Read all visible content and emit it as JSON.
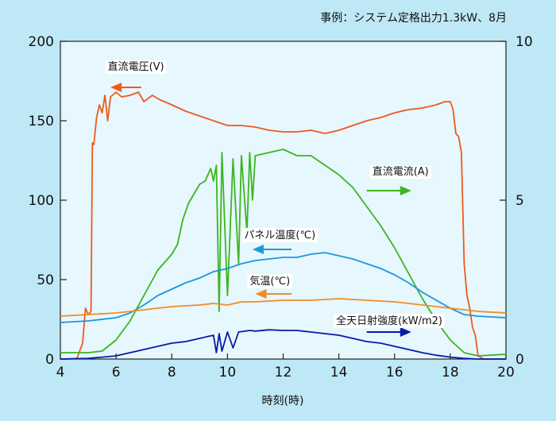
{
  "caption": "事例：システム定格出力1.3kW、8月",
  "chart_data": {
    "type": "line",
    "xlabel": "時刻(時)",
    "xlim": [
      4,
      20
    ],
    "ylim_left": [
      0,
      200
    ],
    "ylim_right": [
      0,
      10
    ],
    "x_ticks": [
      "4",
      "6",
      "8",
      "10",
      "12",
      "14",
      "16",
      "18",
      "20"
    ],
    "y_ticks_left": [
      "0",
      "50",
      "100",
      "150",
      "200"
    ],
    "y_ticks_right": [
      "0",
      "5",
      "10"
    ],
    "grid": false,
    "series": [
      {
        "name": "直流電圧(V)",
        "axis": "left",
        "color": "#ee5a1c",
        "arrow_dir": "left",
        "label_x": 5.7,
        "label_y": 182,
        "arrow_x": [
          6.9,
          5.8
        ],
        "arrow_y": 171,
        "points": [
          [
            4.0,
            0
          ],
          [
            4.3,
            0
          ],
          [
            4.6,
            0.5
          ],
          [
            4.8,
            10
          ],
          [
            4.9,
            32
          ],
          [
            5.0,
            28
          ],
          [
            5.1,
            30
          ],
          [
            5.15,
            136
          ],
          [
            5.2,
            135
          ],
          [
            5.3,
            152
          ],
          [
            5.4,
            160
          ],
          [
            5.5,
            155
          ],
          [
            5.6,
            166
          ],
          [
            5.7,
            150
          ],
          [
            5.8,
            165
          ],
          [
            6.0,
            168
          ],
          [
            6.2,
            165
          ],
          [
            6.5,
            166
          ],
          [
            6.8,
            168
          ],
          [
            7.0,
            162
          ],
          [
            7.3,
            166
          ],
          [
            7.6,
            163
          ],
          [
            8.0,
            160
          ],
          [
            8.5,
            156
          ],
          [
            9.0,
            153
          ],
          [
            9.5,
            150
          ],
          [
            10.0,
            147
          ],
          [
            10.5,
            147
          ],
          [
            11.0,
            146
          ],
          [
            11.5,
            144
          ],
          [
            12.0,
            143
          ],
          [
            12.5,
            143
          ],
          [
            13.0,
            144
          ],
          [
            13.5,
            142
          ],
          [
            14.0,
            144
          ],
          [
            14.5,
            147
          ],
          [
            15.0,
            150
          ],
          [
            15.5,
            152
          ],
          [
            16.0,
            155
          ],
          [
            16.5,
            157
          ],
          [
            17.0,
            158
          ],
          [
            17.5,
            160
          ],
          [
            17.8,
            162
          ],
          [
            18.0,
            162
          ],
          [
            18.1,
            157
          ],
          [
            18.2,
            142
          ],
          [
            18.3,
            140
          ],
          [
            18.4,
            130
          ],
          [
            18.5,
            60
          ],
          [
            18.6,
            40
          ],
          [
            18.7,
            32
          ],
          [
            18.8,
            20
          ],
          [
            18.9,
            15
          ],
          [
            19.0,
            2
          ],
          [
            19.2,
            0
          ],
          [
            20.0,
            0
          ]
        ]
      },
      {
        "name": "直流電流(A)",
        "axis": "right",
        "color": "#3cb521",
        "arrow_dir": "right",
        "label_x": 15.2,
        "label_y": 116,
        "arrow_x": [
          15.0,
          16.6
        ],
        "arrow_y": 106,
        "points": [
          [
            4.0,
            0.2
          ],
          [
            5.0,
            0.2
          ],
          [
            5.5,
            0.25
          ],
          [
            6.0,
            0.6
          ],
          [
            6.5,
            1.2
          ],
          [
            7.0,
            2.0
          ],
          [
            7.5,
            2.8
          ],
          [
            8.0,
            3.3
          ],
          [
            8.2,
            3.6
          ],
          [
            8.4,
            4.4
          ],
          [
            8.6,
            4.9
          ],
          [
            8.8,
            5.2
          ],
          [
            9.0,
            5.5
          ],
          [
            9.2,
            5.6
          ],
          [
            9.4,
            6.0
          ],
          [
            9.5,
            5.6
          ],
          [
            9.6,
            6.1
          ],
          [
            9.7,
            1.5
          ],
          [
            9.8,
            6.5
          ],
          [
            10.0,
            2.0
          ],
          [
            10.2,
            6.3
          ],
          [
            10.4,
            3.0
          ],
          [
            10.5,
            6.4
          ],
          [
            10.7,
            4.0
          ],
          [
            10.8,
            6.5
          ],
          [
            10.9,
            5.0
          ],
          [
            11.0,
            6.4
          ],
          [
            11.5,
            6.5
          ],
          [
            12.0,
            6.6
          ],
          [
            12.5,
            6.4
          ],
          [
            13.0,
            6.4
          ],
          [
            13.5,
            6.1
          ],
          [
            14.0,
            5.8
          ],
          [
            14.5,
            5.4
          ],
          [
            15.0,
            4.8
          ],
          [
            15.5,
            4.2
          ],
          [
            16.0,
            3.5
          ],
          [
            16.5,
            2.7
          ],
          [
            17.0,
            1.9
          ],
          [
            17.5,
            1.2
          ],
          [
            18.0,
            0.6
          ],
          [
            18.5,
            0.2
          ],
          [
            19.0,
            0.1
          ],
          [
            20.0,
            0.15
          ]
        ]
      },
      {
        "name": "パネル温度(℃)",
        "axis": "left",
        "color": "#1f97dc",
        "arrow_dir": "left",
        "label_x": 10.6,
        "label_y": 76,
        "arrow_x": [
          12.3,
          10.9
        ],
        "arrow_y": 69,
        "points": [
          [
            4.0,
            23
          ],
          [
            5.0,
            24
          ],
          [
            6.0,
            26
          ],
          [
            6.5,
            29
          ],
          [
            7.0,
            34
          ],
          [
            7.5,
            40
          ],
          [
            8.0,
            44
          ],
          [
            8.5,
            48
          ],
          [
            9.0,
            51
          ],
          [
            9.5,
            55
          ],
          [
            10.0,
            57
          ],
          [
            10.5,
            60
          ],
          [
            11.0,
            62
          ],
          [
            11.5,
            63
          ],
          [
            12.0,
            64
          ],
          [
            12.5,
            64
          ],
          [
            13.0,
            66
          ],
          [
            13.5,
            67
          ],
          [
            14.0,
            65
          ],
          [
            14.5,
            63
          ],
          [
            15.0,
            60
          ],
          [
            15.5,
            57
          ],
          [
            16.0,
            53
          ],
          [
            16.5,
            48
          ],
          [
            17.0,
            42
          ],
          [
            17.5,
            37
          ],
          [
            18.0,
            32
          ],
          [
            18.5,
            28
          ],
          [
            19.0,
            27
          ],
          [
            20.0,
            26
          ]
        ]
      },
      {
        "name": "気温(℃)",
        "axis": "left",
        "color": "#f08c26",
        "arrow_dir": "left",
        "label_x": 10.8,
        "label_y": 47,
        "arrow_x": [
          12.3,
          11.0
        ],
        "arrow_y": 41,
        "points": [
          [
            4.0,
            27
          ],
          [
            5.0,
            28
          ],
          [
            6.0,
            29
          ],
          [
            7.0,
            31
          ],
          [
            8.0,
            33
          ],
          [
            9.0,
            34
          ],
          [
            9.5,
            35
          ],
          [
            10.0,
            34
          ],
          [
            10.5,
            36
          ],
          [
            11.0,
            36
          ],
          [
            12.0,
            37
          ],
          [
            13.0,
            37
          ],
          [
            14.0,
            38
          ],
          [
            15.0,
            37
          ],
          [
            16.0,
            36
          ],
          [
            17.0,
            34
          ],
          [
            18.0,
            32
          ],
          [
            19.0,
            30
          ],
          [
            20.0,
            29
          ]
        ]
      },
      {
        "name": "全天日射強度(kW/m2)",
        "axis": "right",
        "color": "#0a1aa8",
        "arrow_dir": "right",
        "label_x": 13.9,
        "label_y": 22,
        "arrow_x": [
          15.0,
          16.6
        ],
        "arrow_y": 17,
        "points": [
          [
            4.0,
            0
          ],
          [
            5.0,
            0.02
          ],
          [
            6.0,
            0.1
          ],
          [
            7.0,
            0.3
          ],
          [
            7.5,
            0.4
          ],
          [
            8.0,
            0.5
          ],
          [
            8.5,
            0.55
          ],
          [
            9.0,
            0.65
          ],
          [
            9.5,
            0.75
          ],
          [
            9.6,
            0.2
          ],
          [
            9.7,
            0.8
          ],
          [
            9.8,
            0.25
          ],
          [
            10.0,
            0.85
          ],
          [
            10.2,
            0.35
          ],
          [
            10.4,
            0.85
          ],
          [
            10.8,
            0.9
          ],
          [
            11.0,
            0.88
          ],
          [
            11.5,
            0.92
          ],
          [
            12.0,
            0.9
          ],
          [
            12.5,
            0.9
          ],
          [
            13.0,
            0.85
          ],
          [
            13.5,
            0.8
          ],
          [
            14.0,
            0.75
          ],
          [
            14.5,
            0.65
          ],
          [
            15.0,
            0.55
          ],
          [
            15.5,
            0.5
          ],
          [
            16.0,
            0.4
          ],
          [
            16.5,
            0.3
          ],
          [
            17.0,
            0.2
          ],
          [
            17.5,
            0.12
          ],
          [
            18.0,
            0.06
          ],
          [
            18.5,
            0.02
          ],
          [
            19.0,
            0
          ],
          [
            20.0,
            0
          ]
        ]
      }
    ]
  }
}
